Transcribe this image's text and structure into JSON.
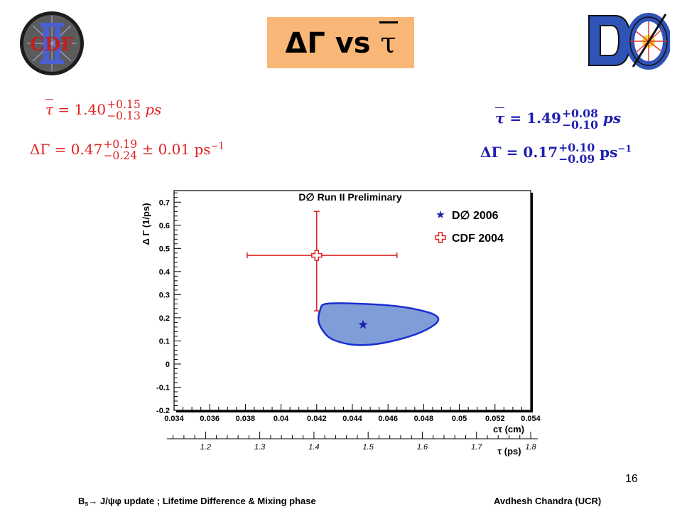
{
  "slide": {
    "title_prefix": "ΔΓ vs",
    "title_tau": "τ",
    "number": "16",
    "footer_left_B": "B",
    "footer_left_sub": "s",
    "footer_left_rest": "→ J/ψφ update ;   Lifetime Difference & Mixing phase",
    "footer_right": "Avdhesh Chandra (UCR)"
  },
  "logos": {
    "left": "CDF",
    "left_numeral": "II",
    "right": "DØ"
  },
  "results": {
    "cdf_tau": {
      "lhs": "τ",
      "value": "1.40",
      "plus": "+0.15",
      "minus": "−0.13",
      "unit": "ps"
    },
    "cdf_dg": {
      "lhs": "ΔΓ = 0.47",
      "plus": "+0.19",
      "minus": "−0.24",
      "syst": "± 0.01 ps",
      "exp": "−1"
    },
    "d0_tau": {
      "lhs": "τ",
      "value": "1.49",
      "plus": "+0.08",
      "minus": "−0.10",
      "unit": "ps"
    },
    "d0_dg": {
      "lhs": "ΔΓ = 0.17",
      "plus": "+0.10",
      "minus": "−0.09",
      "unit": "ps",
      "exp": "−1"
    }
  },
  "colors": {
    "title_bg": "#f9b777",
    "cdf": "#e02020",
    "d0": "#1f1fb0",
    "contour_fill": "#7f9dd6",
    "contour_stroke": "#1a2fd0"
  },
  "chart_data": {
    "type": "scatter",
    "title": "D∅ Run II Preliminary",
    "ylabel": "Δ Γ (1/ps)",
    "xlabel": "cτ (cm)",
    "x2label": "τ (ps)",
    "xlim": [
      0.034,
      0.054
    ],
    "ylim": [
      -0.2,
      0.75
    ],
    "xticks": [
      "0.034",
      "0.036",
      "0.038",
      "0.04",
      "0.042",
      "0.044",
      "0.046",
      "0.048",
      "0.05",
      "0.052",
      "0.054"
    ],
    "xtick_values": [
      0.034,
      0.036,
      0.038,
      0.04,
      0.042,
      0.044,
      0.046,
      0.048,
      0.05,
      0.052,
      0.054
    ],
    "yticks": [
      "-0.2",
      "-0.1",
      "0",
      "0.1",
      "0.2",
      "0.3",
      "0.4",
      "0.5",
      "0.6",
      "0.7"
    ],
    "ytick_values": [
      -0.2,
      -0.1,
      0,
      0.1,
      0.2,
      0.3,
      0.4,
      0.5,
      0.6,
      0.7
    ],
    "x2ticks": [
      "1.2",
      "1.3",
      "1.4",
      "1.5",
      "1.6",
      "1.7",
      "1.8"
    ],
    "x2tick_values": [
      1.2,
      1.3,
      1.4,
      1.5,
      1.6,
      1.7,
      1.8
    ],
    "x2lim": [
      1.13,
      1.8
    ],
    "legend": [
      {
        "name": "D∅ 2006",
        "color": "#1f1fb0",
        "marker": "star"
      },
      {
        "name": "CDF 2004",
        "color": "#e02020",
        "marker": "open-cross"
      }
    ],
    "legend_position": "top-right",
    "series": [
      {
        "name": "D∅ 2006",
        "x": 0.0446,
        "y": 0.17,
        "contour": [
          [
            0.0422,
            0.235
          ],
          [
            0.0425,
            0.26
          ],
          [
            0.044,
            0.262
          ],
          [
            0.0465,
            0.25
          ],
          [
            0.0482,
            0.225
          ],
          [
            0.0488,
            0.2
          ],
          [
            0.0486,
            0.17
          ],
          [
            0.0476,
            0.13
          ],
          [
            0.046,
            0.095
          ],
          [
            0.0448,
            0.083
          ],
          [
            0.0438,
            0.086
          ],
          [
            0.0428,
            0.11
          ],
          [
            0.0423,
            0.15
          ],
          [
            0.0421,
            0.19
          ]
        ]
      },
      {
        "name": "CDF 2004",
        "x": 0.042,
        "y": 0.47,
        "x_err_low": 0.0039,
        "x_err_high": 0.0045,
        "y_err_low": 0.24,
        "y_err_high": 0.19
      }
    ]
  }
}
